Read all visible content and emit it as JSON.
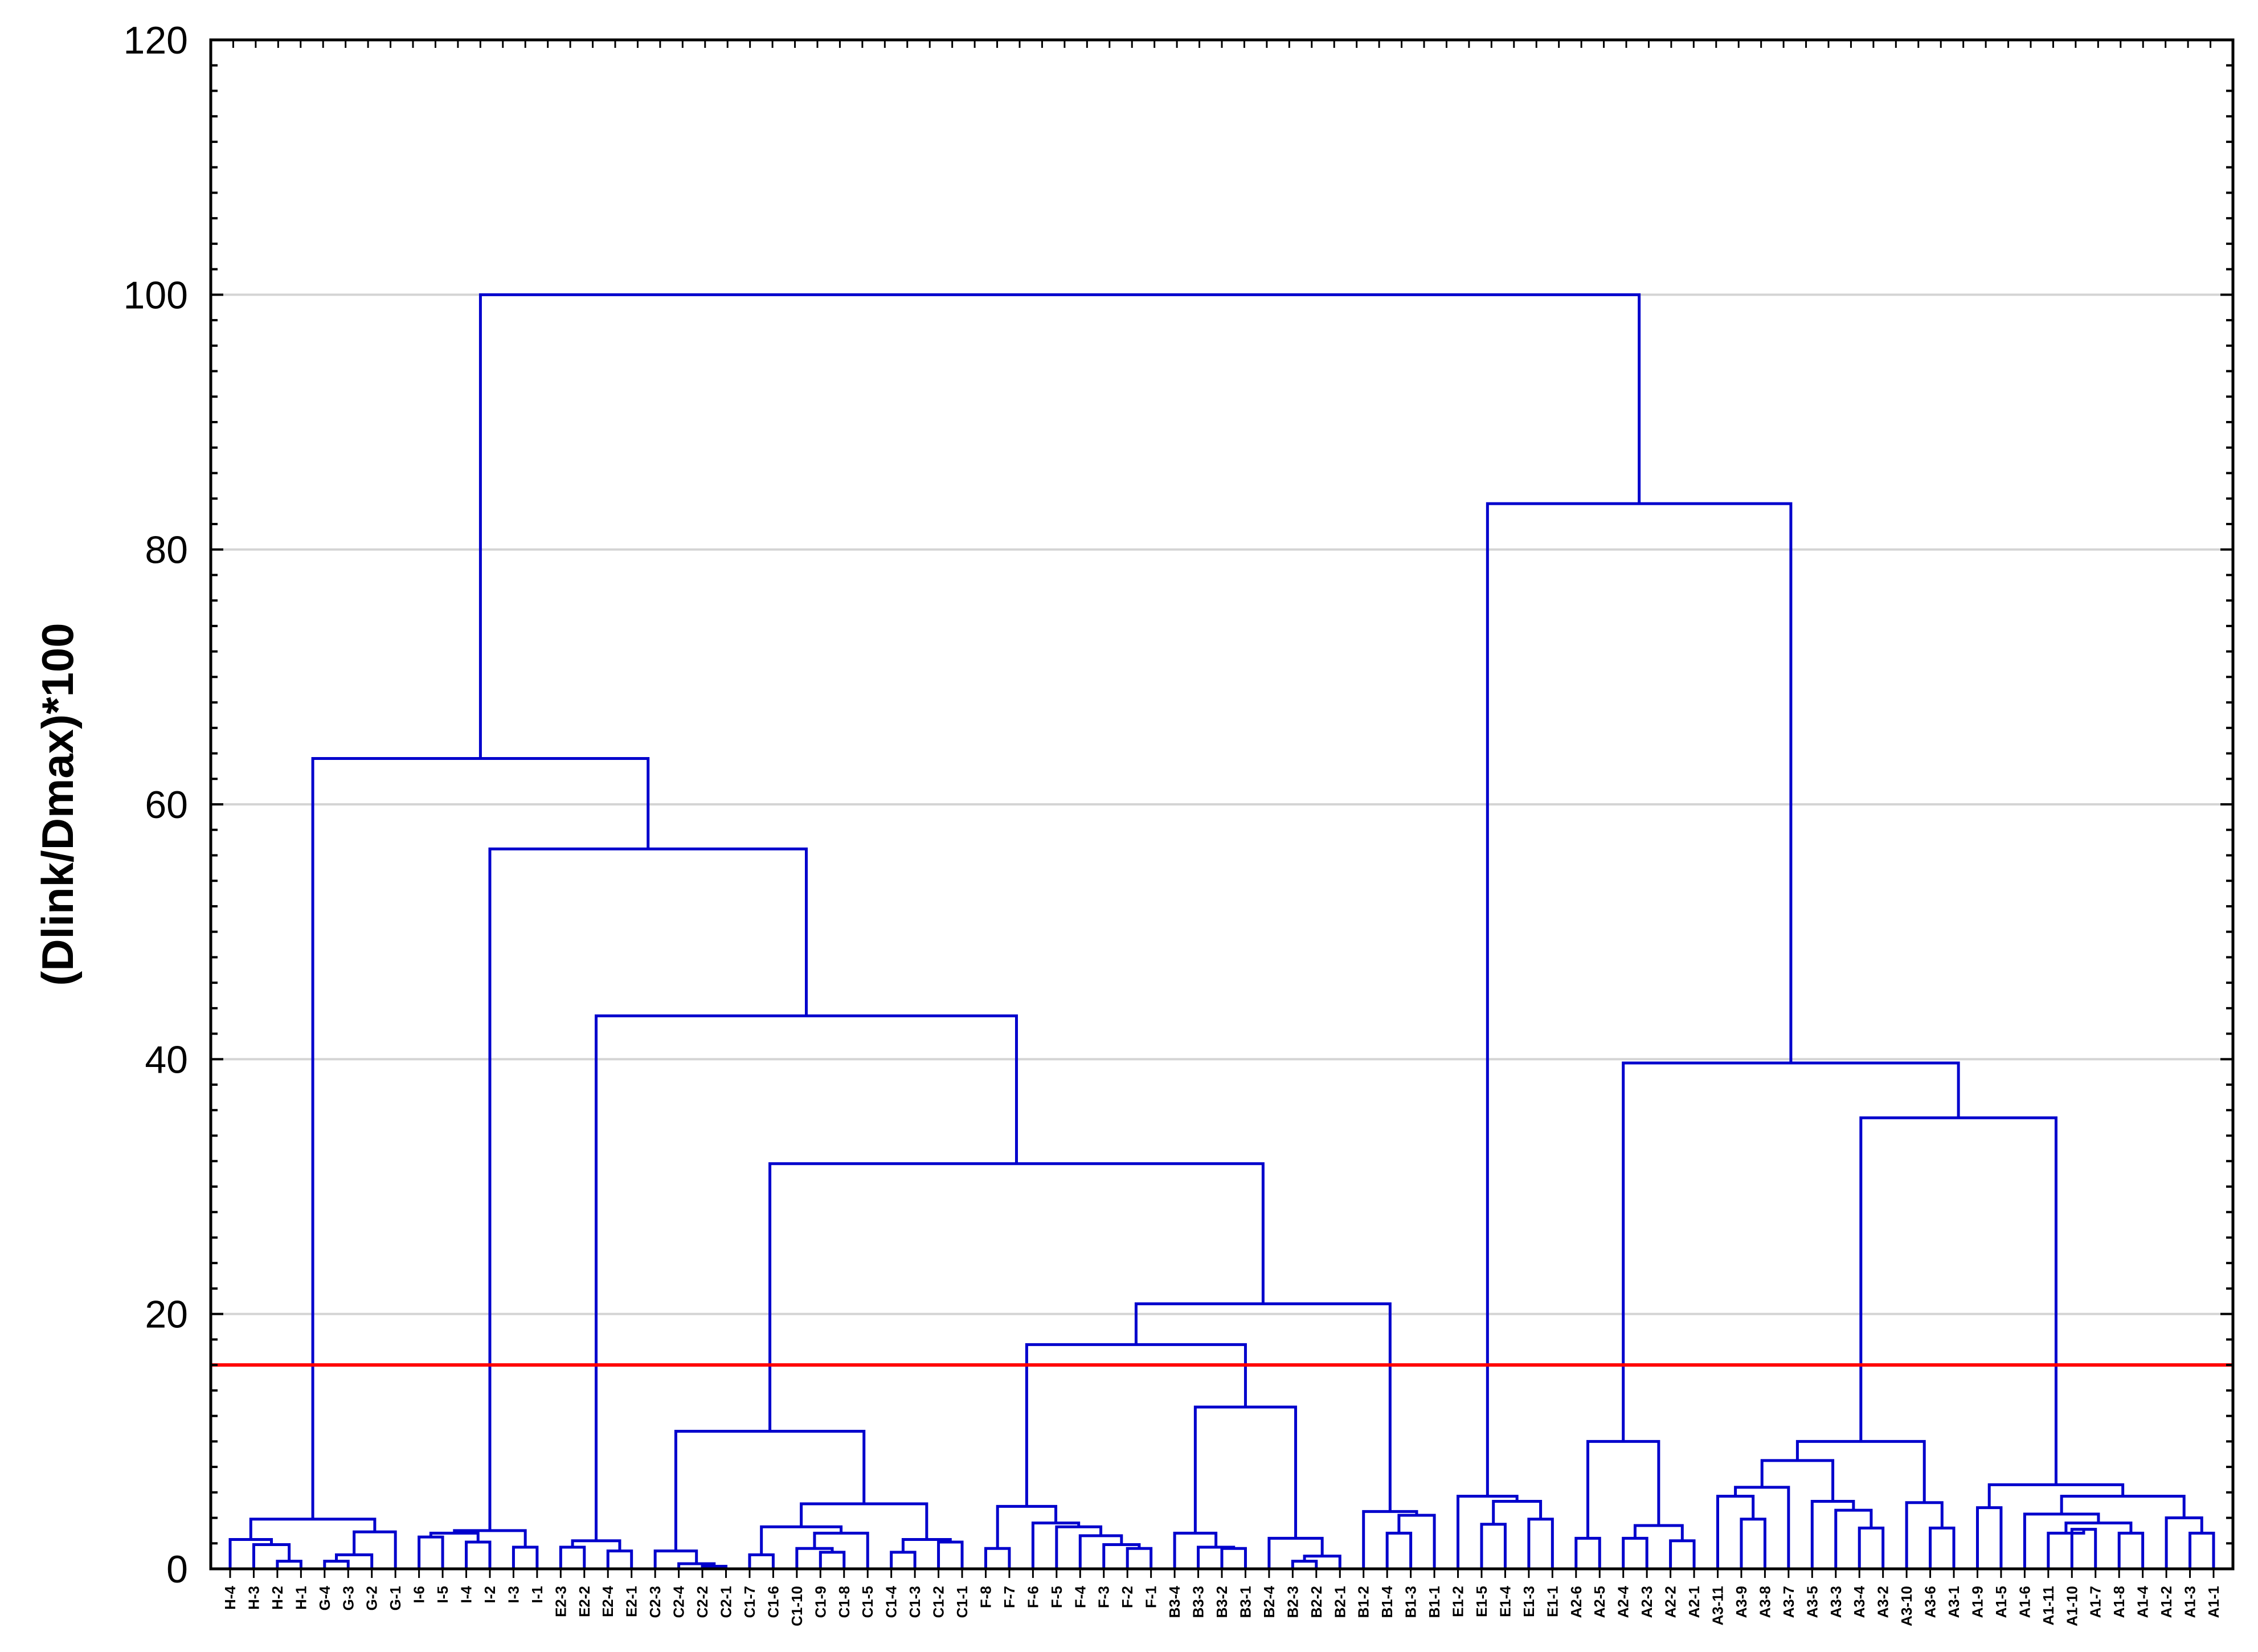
{
  "chart_data": {
    "type": "dendrogram",
    "title": "",
    "xlabel": "",
    "ylabel": "(Dlink/Dmax)*100",
    "ylim": [
      0,
      120
    ],
    "yticks": [
      0,
      20,
      40,
      60,
      80,
      100,
      120
    ],
    "grid": true,
    "cut_line": {
      "value": 16,
      "color": "#ff0000"
    },
    "colors": {
      "tree": "#0000cc",
      "cut_line": "#ff0000",
      "grid": "#d4d4d4",
      "axis": "#000000"
    },
    "leaves": [
      "H-4",
      "H-3",
      "H-2",
      "H-1",
      "G-4",
      "G-3",
      "G-2",
      "G-1",
      "I-6",
      "I-5",
      "I-4",
      "I-2",
      "I-3",
      "I-1",
      "E2-3",
      "E2-2",
      "E2-4",
      "E2-1",
      "C2-3",
      "C2-4",
      "C2-2",
      "C2-1",
      "C1-7",
      "C1-6",
      "C1-10",
      "C1-9",
      "C1-8",
      "C1-5",
      "C1-4",
      "C1-3",
      "C1-2",
      "C1-1",
      "F-8",
      "F-7",
      "F-6",
      "F-5",
      "F-4",
      "F-3",
      "F-2",
      "F-1",
      "B3-4",
      "B3-3",
      "B3-2",
      "B3-1",
      "B2-4",
      "B2-3",
      "B2-2",
      "B2-1",
      "B1-2",
      "B1-4",
      "B1-3",
      "B1-1",
      "E1-2",
      "E1-5",
      "E1-4",
      "E1-3",
      "E1-1",
      "A2-6",
      "A2-5",
      "A2-4",
      "A2-3",
      "A2-2",
      "A2-1",
      "A3-11",
      "A3-9",
      "A3-8",
      "A3-7",
      "A3-5",
      "A3-3",
      "A3-4",
      "A3-2",
      "A3-10",
      "A3-6",
      "A3-1",
      "A1-9",
      "A1-5",
      "A1-6",
      "A1-11",
      "A1-10",
      "A1-7",
      "A1-8",
      "A1-4",
      "A1-2",
      "A1-3",
      "A1-1"
    ],
    "tree": [
      "N",
      100,
      [
        "N",
        63.6,
        [
          "N",
          3.9,
          [
            "N",
            2.3,
            [
              "L",
              "H-4"
            ],
            [
              "N",
              1.9,
              [
                "L",
                "H-3"
              ],
              [
                "N",
                0.6,
                [
                  "L",
                  "H-2"
                ],
                [
                  "L",
                  "H-1"
                ]
              ]
            ]
          ],
          [
            "N",
            2.9,
            [
              "N",
              1.1,
              [
                "N",
                0.6,
                [
                  "L",
                  "G-4"
                ],
                [
                  "L",
                  "G-3"
                ]
              ],
              [
                "L",
                "G-2"
              ]
            ],
            [
              "L",
              "G-1"
            ]
          ]
        ],
        [
          "N",
          56.5,
          [
            "N",
            3.0,
            [
              "N",
              2.8,
              [
                "N",
                2.5,
                [
                  "L",
                  "I-6"
                ],
                [
                  "L",
                  "I-5"
                ]
              ],
              [
                "N",
                2.1,
                [
                  "L",
                  "I-4"
                ],
                [
                  "L",
                  "I-2"
                ]
              ]
            ],
            [
              "N",
              1.7,
              [
                "L",
                "I-3"
              ],
              [
                "L",
                "I-1"
              ]
            ]
          ],
          [
            "N",
            43.4,
            [
              "N",
              2.2,
              [
                "N",
                1.7,
                [
                  "L",
                  "E2-3"
                ],
                [
                  "L",
                  "E2-2"
                ]
              ],
              [
                "N",
                1.4,
                [
                  "L",
                  "E2-4"
                ],
                [
                  "L",
                  "E2-1"
                ]
              ]
            ],
            [
              "N",
              31.8,
              [
                "N",
                10.8,
                [
                  "N",
                  1.4,
                  [
                    "L",
                    "C2-3"
                  ],
                  [
                    "N",
                    0.4,
                    [
                      "L",
                      "C2-4"
                    ],
                    [
                      "N",
                      0.2,
                      [
                        "L",
                        "C2-2"
                      ],
                      [
                        "L",
                        "C2-1"
                      ]
                    ]
                  ]
                ],
                [
                  "N",
                  5.1,
                  [
                    "N",
                    3.3,
                    [
                      "N",
                      1.1,
                      [
                        "L",
                        "C1-7"
                      ],
                      [
                        "L",
                        "C1-6"
                      ]
                    ],
                    [
                      "N",
                      2.8,
                      [
                        "N",
                        1.6,
                        [
                          "L",
                          "C1-10"
                        ],
                        [
                          "N",
                          1.3,
                          [
                            "L",
                            "C1-9"
                          ],
                          [
                            "L",
                            "C1-8"
                          ]
                        ]
                      ],
                      [
                        "L",
                        "C1-5"
                      ]
                    ]
                  ],
                  [
                    "N",
                    2.3,
                    [
                      "N",
                      1.3,
                      [
                        "L",
                        "C1-4"
                      ],
                      [
                        "L",
                        "C1-3"
                      ]
                    ],
                    [
                      "N",
                      2.1,
                      [
                        "L",
                        "C1-2"
                      ],
                      [
                        "L",
                        "C1-1"
                      ]
                    ]
                  ]
                ]
              ],
              [
                "N",
                20.8,
                [
                  "N",
                  17.6,
                  [
                    "N",
                    4.9,
                    [
                      "N",
                      1.6,
                      [
                        "L",
                        "F-8"
                      ],
                      [
                        "L",
                        "F-7"
                      ]
                    ],
                    [
                      "N",
                      3.6,
                      [
                        "L",
                        "F-6"
                      ],
                      [
                        "N",
                        3.3,
                        [
                          "L",
                          "F-5"
                        ],
                        [
                          "N",
                          2.6,
                          [
                            "L",
                            "F-4"
                          ],
                          [
                            "N",
                            1.9,
                            [
                              "L",
                              "F-3"
                            ],
                            [
                              "N",
                              1.6,
                              [
                                "L",
                                "F-2"
                              ],
                              [
                                "L",
                                "F-1"
                              ]
                            ]
                          ]
                        ]
                      ]
                    ]
                  ],
                  [
                    "N",
                    12.7,
                    [
                      "N",
                      2.8,
                      [
                        "L",
                        "B3-4"
                      ],
                      [
                        "N",
                        1.7,
                        [
                          "L",
                          "B3-3"
                        ],
                        [
                          "N",
                          1.6,
                          [
                            "L",
                            "B3-2"
                          ],
                          [
                            "L",
                            "B3-1"
                          ]
                        ]
                      ]
                    ],
                    [
                      "N",
                      2.4,
                      [
                        "L",
                        "B2-4"
                      ],
                      [
                        "N",
                        1.0,
                        [
                          "N",
                          0.6,
                          [
                            "L",
                            "B2-3"
                          ],
                          [
                            "L",
                            "B2-2"
                          ]
                        ],
                        [
                          "L",
                          "B2-1"
                        ]
                      ]
                    ]
                  ]
                ],
                [
                  "N",
                  4.5,
                  [
                    "L",
                    "B1-2"
                  ],
                  [
                    "N",
                    4.2,
                    [
                      "N",
                      2.8,
                      [
                        "L",
                        "B1-4"
                      ],
                      [
                        "L",
                        "B1-3"
                      ]
                    ],
                    [
                      "L",
                      "B1-1"
                    ]
                  ]
                ]
              ]
            ]
          ]
        ]
      ],
      [
        "N",
        83.6,
        [
          "N",
          5.7,
          [
            "L",
            "E1-2"
          ],
          [
            "N",
            5.3,
            [
              "N",
              3.5,
              [
                "L",
                "E1-5"
              ],
              [
                "L",
                "E1-4"
              ]
            ],
            [
              "N",
              3.9,
              [
                "L",
                "E1-3"
              ],
              [
                "L",
                "E1-1"
              ]
            ]
          ]
        ],
        [
          "N",
          39.7,
          [
            "N",
            10.0,
            [
              "N",
              2.4,
              [
                "L",
                "A2-6"
              ],
              [
                "L",
                "A2-5"
              ]
            ],
            [
              "N",
              3.4,
              [
                "N",
                2.4,
                [
                  "L",
                  "A2-4"
                ],
                [
                  "L",
                  "A2-3"
                ]
              ],
              [
                "N",
                2.2,
                [
                  "L",
                  "A2-2"
                ],
                [
                  "L",
                  "A2-1"
                ]
              ]
            ]
          ],
          [
            "N",
            35.4,
            [
              "N",
              10.0,
              [
                "N",
                8.5,
                [
                  "N",
                  6.4,
                  [
                    "N",
                    5.7,
                    [
                      "L",
                      "A3-11"
                    ],
                    [
                      "N",
                      3.9,
                      [
                        "L",
                        "A3-9"
                      ],
                      [
                        "L",
                        "A3-8"
                      ]
                    ]
                  ],
                  [
                    "L",
                    "A3-7"
                  ]
                ],
                [
                  "N",
                  5.3,
                  [
                    "L",
                    "A3-5"
                  ],
                  [
                    "N",
                    4.6,
                    [
                      "L",
                      "A3-3"
                    ],
                    [
                      "N",
                      3.2,
                      [
                        "L",
                        "A3-4"
                      ],
                      [
                        "L",
                        "A3-2"
                      ]
                    ]
                  ]
                ]
              ],
              [
                "N",
                5.2,
                [
                  "L",
                  "A3-10"
                ],
                [
                  "N",
                  3.2,
                  [
                    "L",
                    "A3-6"
                  ],
                  [
                    "L",
                    "A3-1"
                  ]
                ]
              ]
            ],
            [
              "N",
              6.6,
              [
                "N",
                4.8,
                [
                  "L",
                  "A1-9"
                ],
                [
                  "L",
                  "A1-5"
                ]
              ],
              [
                "N",
                5.7,
                [
                  "N",
                  4.3,
                  [
                    "L",
                    "A1-6"
                  ],
                  [
                    "N",
                    3.6,
                    [
                      "N",
                      2.8,
                      [
                        "L",
                        "A1-11"
                      ],
                      [
                        "N",
                        3.1,
                        [
                          "L",
                          "A1-10"
                        ],
                        [
                          "L",
                          "A1-7"
                        ]
                      ]
                    ],
                    [
                      "N",
                      2.8,
                      [
                        "L",
                        "A1-8"
                      ],
                      [
                        "L",
                        "A1-4"
                      ]
                    ]
                  ]
                ],
                [
                  "N",
                  4.0,
                  [
                    "L",
                    "A1-2"
                  ],
                  [
                    "N",
                    2.8,
                    [
                      "L",
                      "A1-3"
                    ],
                    [
                      "L",
                      "A1-1"
                    ]
                  ]
                ]
              ]
            ]
          ]
        ]
      ]
    ]
  }
}
